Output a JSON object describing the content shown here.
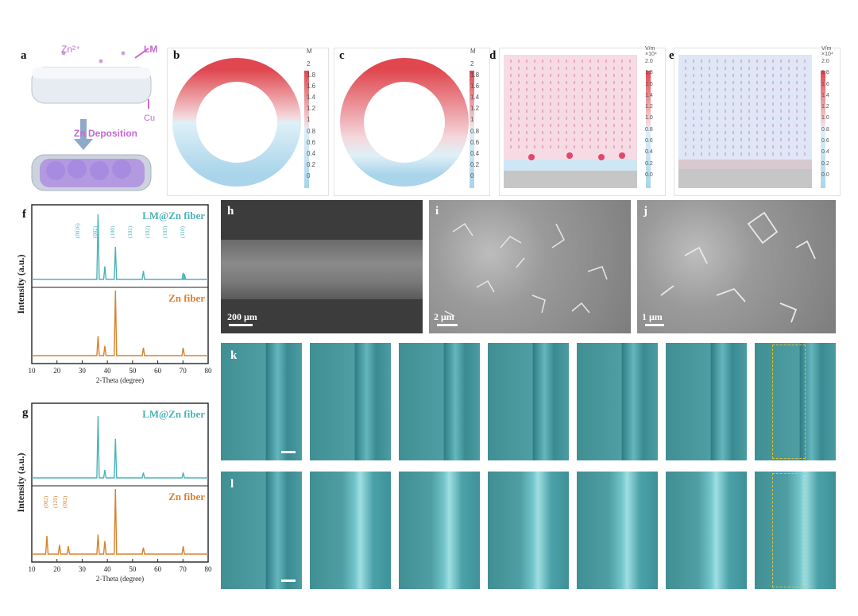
{
  "panel_labels": {
    "a": "a",
    "b": "b",
    "c": "c",
    "d": "d",
    "e": "e",
    "f": "f",
    "g": "g",
    "h": "h",
    "i": "i",
    "j": "j",
    "k": "k",
    "l": "l"
  },
  "panel_a": {
    "zn_ion": "Zn²⁺",
    "lm": "LM",
    "cu": "Cu",
    "deposition": "Zn Deposition"
  },
  "colorbar_M": {
    "unit": "M",
    "ticks": [
      "2",
      "1.8",
      "1.6",
      "1.4",
      "1.2",
      "1",
      "0.8",
      "0.6",
      "0.4",
      "0.2",
      "0"
    ]
  },
  "colorbar_V": {
    "unit": "V/m",
    "exp": "×10⁴",
    "ticks": [
      "2.0",
      "1.8",
      "1.6",
      "1.4",
      "1.2",
      "1.0",
      "0.8",
      "0.6",
      "0.4",
      "0.2",
      "0.0"
    ]
  },
  "colors": {
    "high": "#e0474f",
    "low": "#a9d4ea",
    "mid": "#f4d8dc",
    "fiber_xrd": "#4bb3b8",
    "zn_xrd": "#d9822b"
  },
  "chart_data": [
    {
      "type": "line",
      "panel": "f",
      "xlabel": "2-Theta (degree)",
      "ylabel": "Intensity (a.u.)",
      "xlim": [
        10,
        80
      ],
      "xticks": [
        "10",
        "20",
        "30",
        "40",
        "50",
        "60",
        "70",
        "80"
      ],
      "series": [
        {
          "name": "LM@Zn fiber",
          "peaks": [
            [
              36.3,
              1.0
            ],
            [
              39.0,
              0.2
            ],
            [
              43.2,
              0.5
            ],
            [
              54.3,
              0.13
            ],
            [
              70.1,
              0.1
            ],
            [
              70.6,
              0.08
            ]
          ]
        },
        {
          "name": "Zn fiber",
          "peaks": [
            [
              36.3,
              0.3
            ],
            [
              39.0,
              0.15
            ],
            [
              43.2,
              1.0
            ],
            [
              54.3,
              0.12
            ],
            [
              70.1,
              0.12
            ]
          ]
        }
      ],
      "peak_labels": [
        "(0016)",
        "(002)",
        "(100)",
        "(101)",
        "(102)",
        "(103)",
        "(110)"
      ]
    },
    {
      "type": "line",
      "panel": "g",
      "xlabel": "2-Theta (degree)",
      "ylabel": "Intensity (a.u.)",
      "xlim": [
        10,
        80
      ],
      "xticks": [
        "10",
        "20",
        "30",
        "40",
        "50",
        "60",
        "70",
        "80"
      ],
      "series": [
        {
          "name": "LM@Zn fiber",
          "peaks": [
            [
              36.3,
              0.95
            ],
            [
              39.0,
              0.12
            ],
            [
              43.2,
              0.6
            ],
            [
              54.3,
              0.08
            ],
            [
              70.1,
              0.08
            ]
          ]
        },
        {
          "name": "Zn fiber",
          "peaks": [
            [
              16.0,
              0.28
            ],
            [
              21.0,
              0.14
            ],
            [
              24.5,
              0.12
            ],
            [
              36.3,
              0.3
            ],
            [
              39.0,
              0.2
            ],
            [
              43.2,
              1.0
            ],
            [
              54.3,
              0.1
            ],
            [
              70.1,
              0.12
            ]
          ]
        }
      ],
      "peak_labels": [
        "(002)",
        "(120)",
        "(002)"
      ]
    }
  ],
  "sem": {
    "h_scale": "200 μm",
    "i_scale": "2 μm",
    "j_scale": "1 μm"
  }
}
